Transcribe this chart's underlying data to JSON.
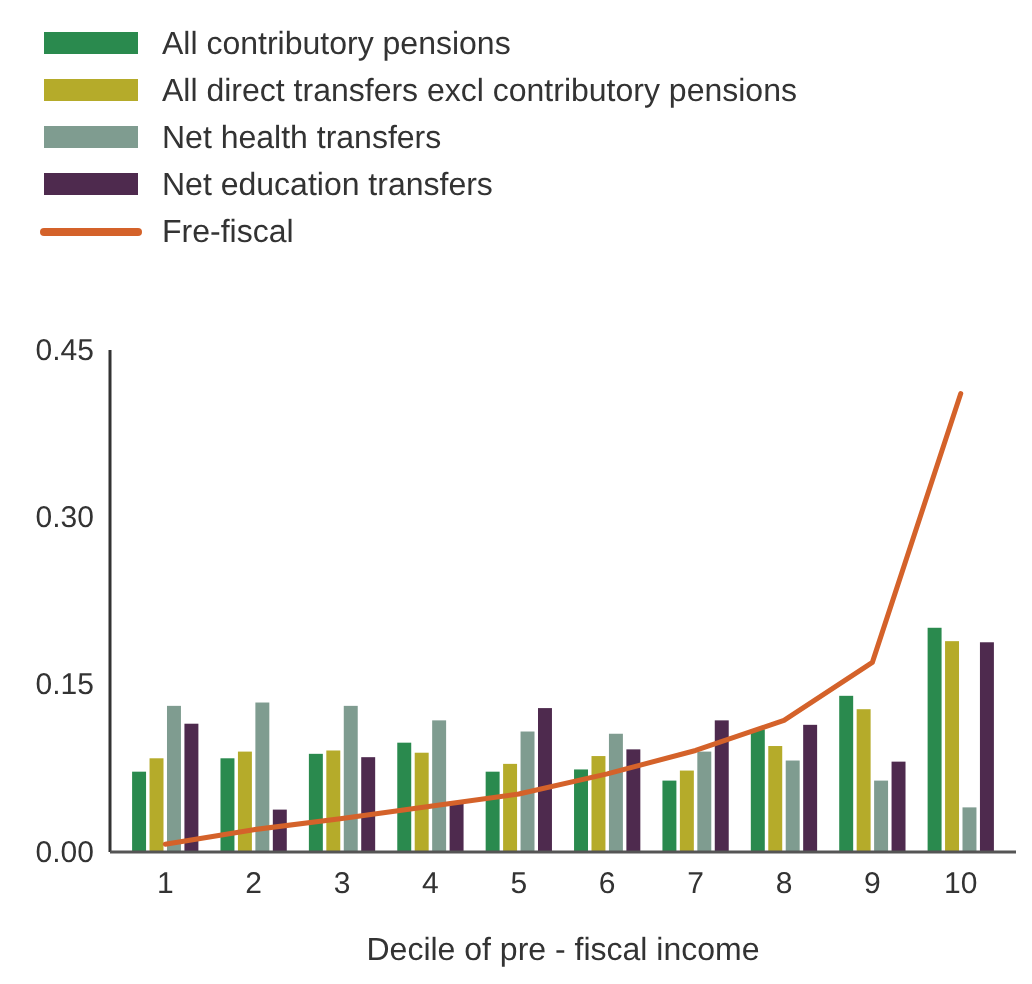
{
  "chart_data": {
    "type": "bar",
    "xlabel": "Decile of pre - fiscal income",
    "categories": [
      "1",
      "2",
      "3",
      "4",
      "5",
      "6",
      "7",
      "8",
      "9",
      "10"
    ],
    "ylim": [
      0,
      0.45
    ],
    "yticks": [
      {
        "value": 0,
        "label": "0.00"
      },
      {
        "value": 0.15,
        "label": "0.15"
      },
      {
        "value": 0.3,
        "label": "0.30"
      },
      {
        "value": 0.45,
        "label": "0.45"
      }
    ],
    "grid": false,
    "legend": "top left",
    "series": [
      {
        "name": "All contributory pensions",
        "color": "#2a8a4e",
        "values": [
          0.072,
          0.084,
          0.088,
          0.098,
          0.072,
          0.074,
          0.064,
          0.11,
          0.14,
          0.201
        ]
      },
      {
        "name": "All direct transfers excl contributory pensions",
        "color": "#b5ab2a",
        "values": [
          0.084,
          0.09,
          0.091,
          0.089,
          0.079,
          0.086,
          0.073,
          0.095,
          0.128,
          0.189
        ]
      },
      {
        "name": "Net health transfers",
        "color": "#7f9c90",
        "values": [
          0.131,
          0.134,
          0.131,
          0.118,
          0.108,
          0.106,
          0.09,
          0.082,
          0.064,
          0.04
        ]
      },
      {
        "name": "Net education transfers",
        "color": "#4e2a4e",
        "values": [
          0.115,
          0.038,
          0.085,
          0.044,
          0.129,
          0.092,
          0.118,
          0.114,
          0.081,
          0.188
        ]
      },
      {
        "name": "Fre-fiscal",
        "type": "line",
        "color": "#d4622a",
        "values": [
          0.007,
          0.02,
          0.03,
          0.041,
          0.052,
          0.07,
          0.091,
          0.118,
          0.17,
          0.411
        ]
      }
    ]
  }
}
